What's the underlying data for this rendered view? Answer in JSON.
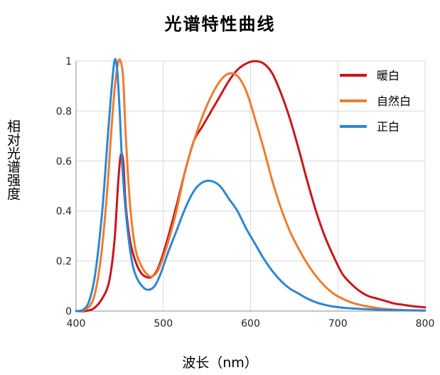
{
  "chart_data": {
    "type": "line",
    "title": "光谱特性曲线",
    "xlabel": "波长（nm）",
    "ylabel": "相对光谱强度",
    "xlim": [
      400,
      800
    ],
    "ylim": [
      0,
      1
    ],
    "x_ticks": [
      400,
      500,
      600,
      700,
      800
    ],
    "y_ticks": [
      0,
      0.2,
      0.4,
      0.6,
      0.8,
      1
    ],
    "y_tick_labels": [
      "0",
      "0.2",
      "0.4",
      "0.6",
      "0.8",
      "1"
    ],
    "grid": true,
    "legend_position": "top-right",
    "series": [
      {
        "name": "暖白",
        "color": "#c8161d",
        "points": [
          [
            400,
            0
          ],
          [
            410,
            0
          ],
          [
            420,
            0.01
          ],
          [
            430,
            0.05
          ],
          [
            438,
            0.12
          ],
          [
            444,
            0.28
          ],
          [
            448,
            0.5
          ],
          [
            451,
            0.62
          ],
          [
            454,
            0.6
          ],
          [
            457,
            0.42
          ],
          [
            462,
            0.28
          ],
          [
            468,
            0.2
          ],
          [
            475,
            0.15
          ],
          [
            482,
            0.135
          ],
          [
            488,
            0.14
          ],
          [
            495,
            0.18
          ],
          [
            505,
            0.29
          ],
          [
            515,
            0.42
          ],
          [
            525,
            0.56
          ],
          [
            535,
            0.68
          ],
          [
            545,
            0.74
          ],
          [
            555,
            0.8
          ],
          [
            565,
            0.86
          ],
          [
            575,
            0.92
          ],
          [
            585,
            0.965
          ],
          [
            595,
            0.99
          ],
          [
            605,
            1.0
          ],
          [
            615,
            0.99
          ],
          [
            625,
            0.95
          ],
          [
            635,
            0.87
          ],
          [
            645,
            0.77
          ],
          [
            655,
            0.65
          ],
          [
            665,
            0.52
          ],
          [
            675,
            0.4
          ],
          [
            685,
            0.3
          ],
          [
            695,
            0.22
          ],
          [
            705,
            0.15
          ],
          [
            715,
            0.11
          ],
          [
            725,
            0.08
          ],
          [
            735,
            0.06
          ],
          [
            745,
            0.05
          ],
          [
            755,
            0.04
          ],
          [
            765,
            0.03
          ],
          [
            775,
            0.025
          ],
          [
            785,
            0.02
          ],
          [
            800,
            0.015
          ]
        ]
      },
      {
        "name": "自然白",
        "color": "#ed7d31",
        "points": [
          [
            400,
            0
          ],
          [
            410,
            0.005
          ],
          [
            420,
            0.05
          ],
          [
            428,
            0.2
          ],
          [
            435,
            0.45
          ],
          [
            440,
            0.7
          ],
          [
            444,
            0.88
          ],
          [
            448,
            0.99
          ],
          [
            451,
            1.0
          ],
          [
            454,
            0.93
          ],
          [
            457,
            0.7
          ],
          [
            462,
            0.42
          ],
          [
            468,
            0.25
          ],
          [
            475,
            0.18
          ],
          [
            482,
            0.145
          ],
          [
            488,
            0.14
          ],
          [
            495,
            0.17
          ],
          [
            505,
            0.27
          ],
          [
            515,
            0.4
          ],
          [
            525,
            0.56
          ],
          [
            535,
            0.68
          ],
          [
            545,
            0.78
          ],
          [
            555,
            0.86
          ],
          [
            565,
            0.92
          ],
          [
            575,
            0.95
          ],
          [
            585,
            0.94
          ],
          [
            595,
            0.88
          ],
          [
            605,
            0.77
          ],
          [
            615,
            0.65
          ],
          [
            625,
            0.52
          ],
          [
            635,
            0.41
          ],
          [
            645,
            0.32
          ],
          [
            655,
            0.25
          ],
          [
            665,
            0.19
          ],
          [
            675,
            0.14
          ],
          [
            685,
            0.1
          ],
          [
            695,
            0.07
          ],
          [
            705,
            0.05
          ],
          [
            715,
            0.035
          ],
          [
            725,
            0.025
          ],
          [
            735,
            0.018
          ],
          [
            750,
            0.01
          ],
          [
            770,
            0.005
          ],
          [
            800,
            0.002
          ]
        ]
      },
      {
        "name": "正白",
        "color": "#2e86d3",
        "points": [
          [
            400,
            0
          ],
          [
            408,
            0.005
          ],
          [
            415,
            0.04
          ],
          [
            422,
            0.15
          ],
          [
            430,
            0.4
          ],
          [
            436,
            0.68
          ],
          [
            440,
            0.86
          ],
          [
            444,
            1.0
          ],
          [
            447,
            0.97
          ],
          [
            450,
            0.8
          ],
          [
            453,
            0.58
          ],
          [
            458,
            0.36
          ],
          [
            464,
            0.2
          ],
          [
            470,
            0.13
          ],
          [
            477,
            0.095
          ],
          [
            483,
            0.085
          ],
          [
            490,
            0.1
          ],
          [
            497,
            0.15
          ],
          [
            505,
            0.23
          ],
          [
            515,
            0.32
          ],
          [
            525,
            0.41
          ],
          [
            535,
            0.48
          ],
          [
            545,
            0.515
          ],
          [
            555,
            0.52
          ],
          [
            565,
            0.5
          ],
          [
            575,
            0.45
          ],
          [
            585,
            0.4
          ],
          [
            595,
            0.33
          ],
          [
            605,
            0.27
          ],
          [
            615,
            0.21
          ],
          [
            625,
            0.16
          ],
          [
            635,
            0.12
          ],
          [
            645,
            0.09
          ],
          [
            655,
            0.07
          ],
          [
            665,
            0.05
          ],
          [
            675,
            0.035
          ],
          [
            685,
            0.025
          ],
          [
            695,
            0.018
          ],
          [
            710,
            0.012
          ],
          [
            730,
            0.008
          ],
          [
            760,
            0.004
          ],
          [
            800,
            0.002
          ]
        ]
      }
    ]
  }
}
